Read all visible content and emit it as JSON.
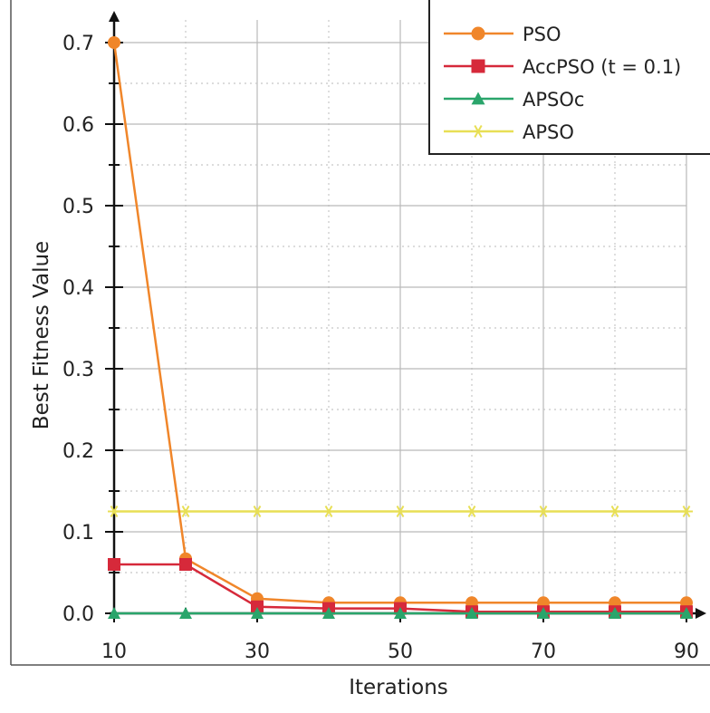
{
  "chart_data": {
    "type": "line",
    "title": "",
    "xlabel": "Iterations",
    "ylabel": "Best Fitness Value",
    "x": [
      10,
      20,
      30,
      40,
      50,
      60,
      70,
      80,
      90
    ],
    "x_tick_labels": [
      "10",
      "30",
      "50",
      "70",
      "90"
    ],
    "x_tick_values": [
      10,
      30,
      50,
      70,
      90
    ],
    "y_tick_labels": [
      "0.0",
      "0.1",
      "0.2",
      "0.3",
      "0.4",
      "0.5",
      "0.6",
      "0.7"
    ],
    "y_tick_values": [
      0,
      0.1,
      0.2,
      0.3,
      0.4,
      0.5,
      0.6,
      0.7
    ],
    "xlim": [
      10,
      90
    ],
    "ylim": [
      0,
      0.7
    ],
    "grid": true,
    "legend_position": "top-right",
    "series": [
      {
        "name": "PSO",
        "marker": "circle",
        "color": "#f0862a",
        "values": [
          0.7,
          0.067,
          0.018,
          0.013,
          0.013,
          0.013,
          0.013,
          0.013,
          0.013
        ]
      },
      {
        "name": "AccPSO (t = 0.1)",
        "marker": "square",
        "color": "#d6293a",
        "values": [
          0.06,
          0.06,
          0.008,
          0.006,
          0.006,
          0.002,
          0.002,
          0.002,
          0.002
        ]
      },
      {
        "name": "APSOc",
        "marker": "triangle",
        "color": "#2aa56b",
        "values": [
          0.0,
          0.0,
          0.0,
          0.0,
          0.0,
          0.0,
          0.0,
          0.0,
          0.0
        ]
      },
      {
        "name": "APSO",
        "marker": "star",
        "color": "#e8df55",
        "values": [
          0.125,
          0.125,
          0.125,
          0.125,
          0.125,
          0.125,
          0.125,
          0.125,
          0.125
        ]
      }
    ]
  }
}
